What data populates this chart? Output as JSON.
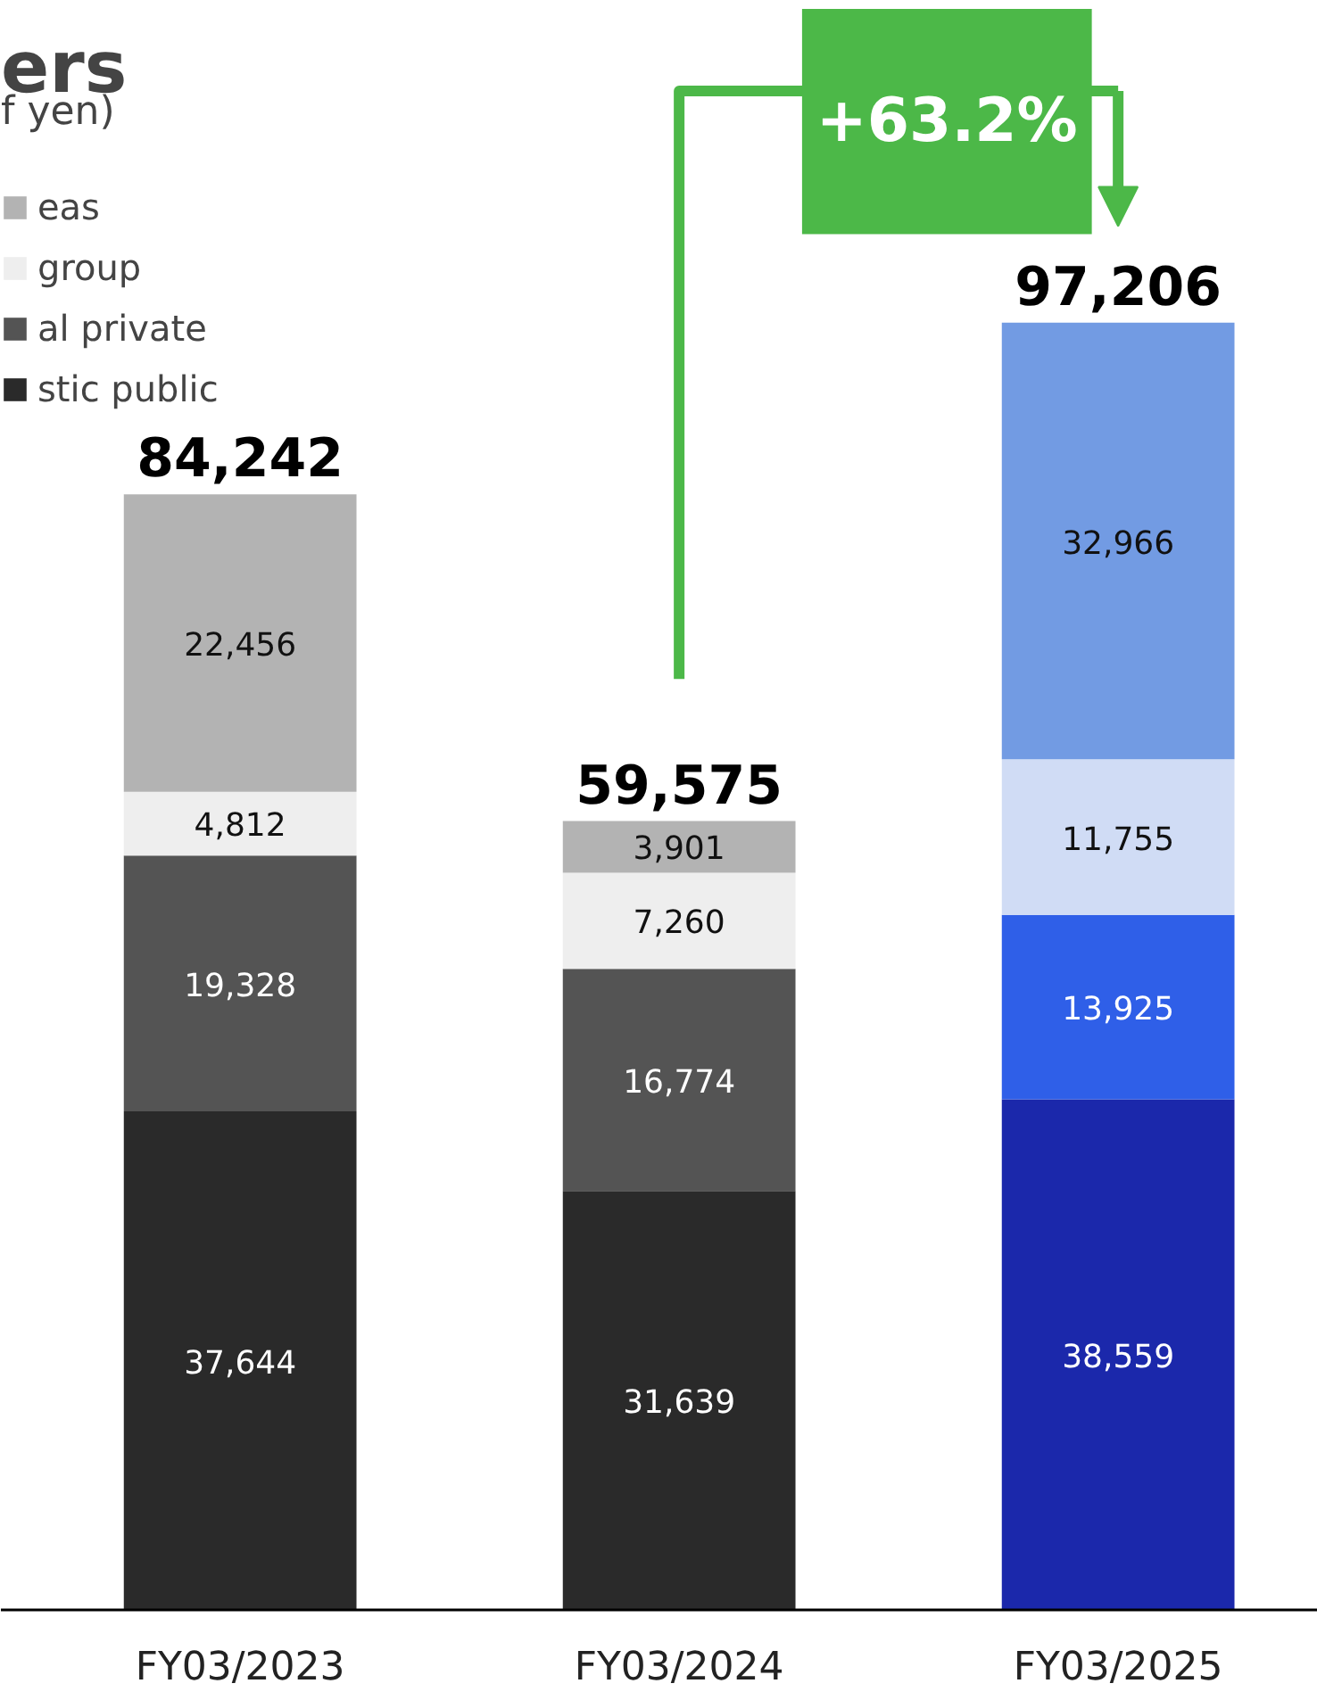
{
  "chart_data": {
    "type": "bar",
    "title": "ers",
    "subtitle": "f yen)",
    "categories": [
      "FY03/2023",
      "FY03/2024",
      "FY03/2025"
    ],
    "stacked": true,
    "legend": "top left",
    "grid": false,
    "series": [
      {
        "name": "stic public",
        "colors": [
          "#2a2a2a",
          "#2a2a2a",
          "#1b28ab"
        ],
        "values": [
          37644,
          31639,
          38559
        ],
        "value_labels": [
          "37,644",
          "31,639",
          "38,559"
        ]
      },
      {
        "name": "al private",
        "colors": [
          "#545454",
          "#545454",
          "#2f5fe8"
        ],
        "values": [
          19328,
          16774,
          13925
        ],
        "value_labels": [
          "19,328",
          "16,774",
          "13,925"
        ]
      },
      {
        "name": "group",
        "colors": [
          "#eeeeee",
          "#eeeeee",
          "#d0dcf5"
        ],
        "values": [
          4812,
          7260,
          11755
        ],
        "value_labels": [
          "4,812",
          "7,260",
          "11,755"
        ]
      },
      {
        "name": "eas",
        "colors": [
          "#b3b3b3",
          "#b3b3b3",
          "#729be3"
        ],
        "values": [
          22456,
          3901,
          32966
        ],
        "value_labels": [
          "22,456",
          "3,901",
          "32,966"
        ]
      }
    ],
    "totals": [
      "84,242",
      "59,575",
      "97,206"
    ],
    "annotations": [
      "+63.2%"
    ]
  }
}
